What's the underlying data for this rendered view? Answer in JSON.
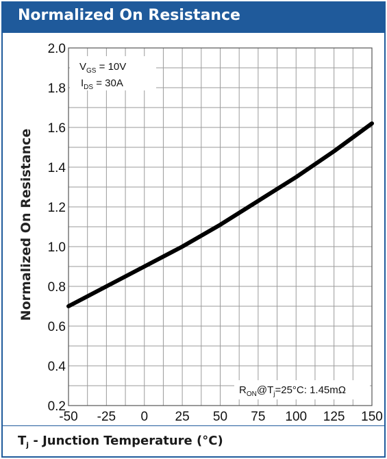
{
  "header": {
    "title": "Normalized On Resistance"
  },
  "footer": {
    "xlabel_main": "T",
    "xlabel_sub": "j",
    "xlabel_rest": " - Junction Temperature (°C)"
  },
  "colors": {
    "header_bg": "#1f5a9b",
    "grid": "#9a9a9a",
    "line": "#000000"
  },
  "annotations": {
    "vgs_main": "V",
    "vgs_sub": "GS",
    "vgs_value": " = 10V",
    "ids_main": "I",
    "ids_sub": "DS",
    "ids_value": " =  30A",
    "ron_main": "R",
    "ron_sub": "ON",
    "ron_mid": "@T",
    "ron_sub2": "j",
    "ron_value": "=25°C: 1.45mΩ"
  },
  "chart_data": {
    "type": "line",
    "title": "Normalized On Resistance",
    "xlabel": "Tj - Junction Temperature (°C)",
    "ylabel": "Normalized On Resistance",
    "xlim": [
      -50,
      150
    ],
    "ylim": [
      0.2,
      2.0
    ],
    "x_ticks": [
      -50,
      -25,
      0,
      25,
      50,
      75,
      100,
      125,
      150
    ],
    "y_ticks": [
      "0.2",
      "0.4",
      "0.6",
      "0.8",
      "1.0",
      "1.2",
      "1.4",
      "1.6",
      "1.8",
      "2.0"
    ],
    "grid": true,
    "series": [
      {
        "x": [
          -50,
          -25,
          0,
          25,
          50,
          75,
          100,
          125,
          150
        ],
        "y": [
          0.7,
          0.8,
          0.9,
          1.0,
          1.11,
          1.23,
          1.35,
          1.48,
          1.62
        ]
      }
    ]
  }
}
